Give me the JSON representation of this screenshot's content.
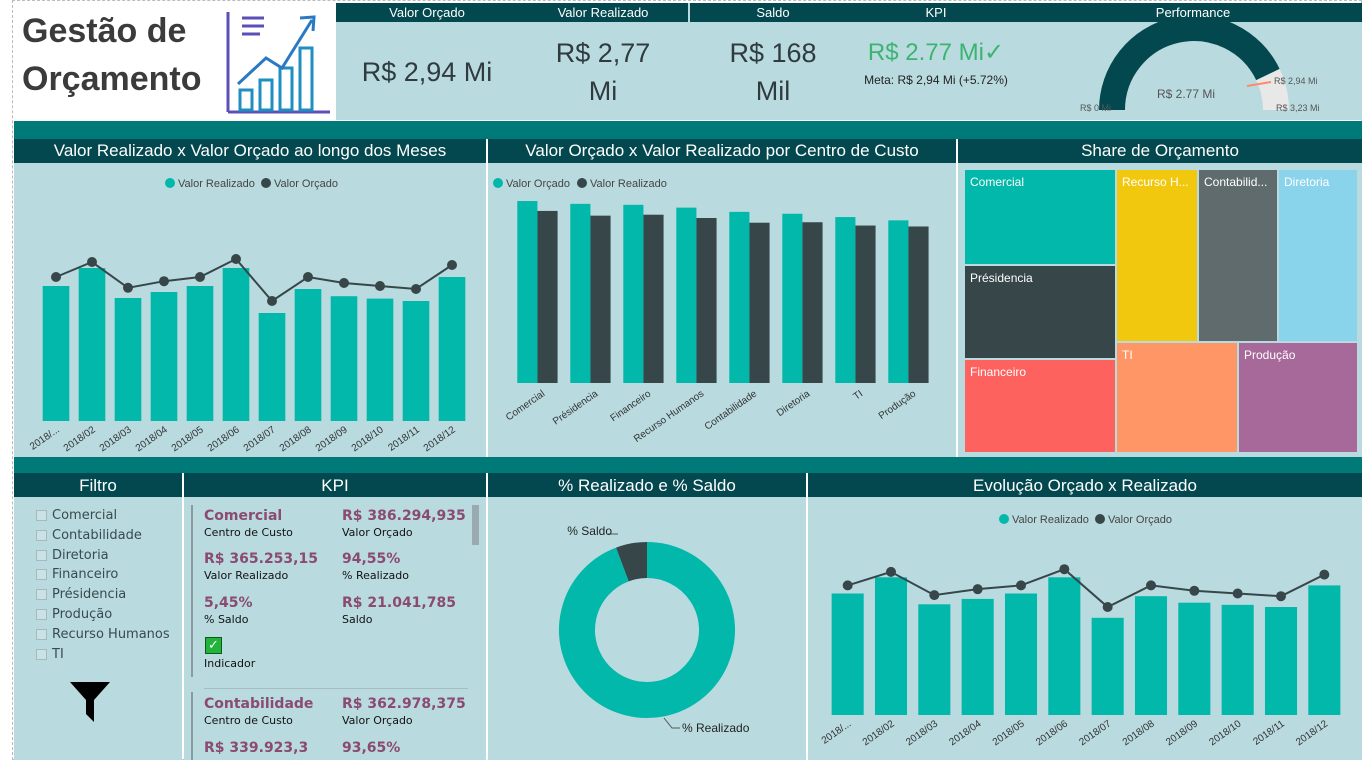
{
  "title": {
    "line1": "Gestão de",
    "line2": "Orçamento"
  },
  "cards": {
    "orcado": {
      "label": "Valor Orçado",
      "value": "R$ 2,94 Mi"
    },
    "realizado": {
      "label": "Valor Realizado",
      "value1": "R$ 2,77",
      "value2": "Mi"
    },
    "saldo": {
      "label": "Saldo",
      "value1": "R$ 168",
      "value2": "Mil"
    },
    "kpi": {
      "label": "KPI",
      "value": "R$ 2.77 Mi✓",
      "meta": "Meta: R$ 2,94 Mi (+5.72%)"
    },
    "performance": {
      "label": "Performance",
      "center": "R$ 2.77 Mi",
      "min": "R$ 0 Mi",
      "target": "R$ 2,94 Mi",
      "max": "R$ 3,23 Mi",
      "value_fraction": 0.8576
    }
  },
  "colors": {
    "teal": "#01b8aa",
    "dark": "#374649",
    "header": "#03484f",
    "panel": "#b9dbe0",
    "kpi_accent": "#8a4a72"
  },
  "chart1": {
    "title": "Valor Realizado x Valor Orçado ao longo dos Meses",
    "legend": [
      "Valor Realizado",
      "Valor Orçado"
    ]
  },
  "chart2": {
    "title": "Valor Orçado x Valor Realizado por Centro de Custo",
    "legend": [
      "Valor Orçado",
      "Valor Realizado"
    ]
  },
  "treemap": {
    "title": "Share de Orçamento"
  },
  "filtro": {
    "title": "Filtro",
    "items": [
      "Comercial",
      "Contabilidade",
      "Diretoria",
      "Financeiro",
      "Présidencia",
      "Produção",
      "Recurso Humanos",
      "TI"
    ]
  },
  "kpi_panel": {
    "title": "KPI",
    "cards": [
      {
        "name": "Comercial",
        "name_label": "Centro de Custo",
        "orcado": "R$ 386.294,935",
        "orcado_label": "Valor Orçado",
        "realizado": "R$ 365.253,15",
        "realizado_label": "Valor Realizado",
        "pct_realizado": "94,55%",
        "pct_realizado_label": "% Realizado",
        "pct_saldo": "5,45%",
        "pct_saldo_label": "% Saldo",
        "saldo": "R$ 21.041,785",
        "saldo_label": "Saldo",
        "indicator_label": "Indicador"
      },
      {
        "name": "Contabilidade",
        "name_label": "Centro de Custo",
        "orcado": "R$ 362.978,375",
        "orcado_label": "Valor Orçado",
        "realizado": "R$ 339.923,3",
        "pct_realizado": "93,65%"
      }
    ]
  },
  "donut": {
    "title": "% Realizado e % Saldo",
    "label_saldo": "% Saldo",
    "label_realizado": "% Realizado",
    "realizado_pct": 94.28,
    "saldo_pct": 5.72
  },
  "chart4": {
    "title": "Evolução Orçado x Realizado",
    "legend": [
      "Valor Realizado",
      "Valor Orçado"
    ]
  },
  "chart_data": [
    {
      "type": "bar",
      "title": "Valor Realizado x Valor Orçado ao longo dos Meses",
      "categories": [
        "2018/...",
        "2018/02",
        "2018/03",
        "2018/04",
        "2018/05",
        "2018/06",
        "2018/07",
        "2018/08",
        "2018/09",
        "2018/10",
        "2018/11",
        "2018/12"
      ],
      "series": [
        {
          "name": "Valor Realizado",
          "type": "bar",
          "values": [
            225,
            255,
            205,
            215,
            225,
            255,
            180,
            220,
            208,
            204,
            200,
            240
          ]
        },
        {
          "name": "Valor Orçado",
          "type": "line",
          "values": [
            240,
            265,
            222,
            233,
            240,
            270,
            200,
            240,
            230,
            225,
            220,
            260
          ]
        }
      ],
      "ylim": [
        0,
        300
      ]
    },
    {
      "type": "bar",
      "title": "Valor Orçado x Valor Realizado por Centro de Custo",
      "categories": [
        "Comercial",
        "Présidencia",
        "Financeiro",
        "Recurso Humanos",
        "Contabilidade",
        "Diretoria",
        "TI",
        "Produção"
      ],
      "series": [
        {
          "name": "Valor Orçado",
          "values": [
            386,
            380,
            378,
            372,
            363,
            359,
            352,
            345
          ]
        },
        {
          "name": "Valor Realizado",
          "values": [
            365,
            355,
            357,
            350,
            340,
            341,
            334,
            332
          ]
        }
      ],
      "ylim": [
        0,
        420
      ]
    },
    {
      "type": "treemap",
      "title": "Share de Orçamento",
      "items": [
        {
          "name": "Comercial",
          "value": 386,
          "color": "#01b8aa"
        },
        {
          "name": "Présidencia",
          "value": 380,
          "color": "#374649"
        },
        {
          "name": "Financeiro",
          "value": 378,
          "color": "#fd625e"
        },
        {
          "name": "Recurso H...",
          "value": 372,
          "color": "#f2c80f"
        },
        {
          "name": "TI",
          "value": 352,
          "color": "#fe9666"
        },
        {
          "name": "Contabilid...",
          "value": 363,
          "color": "#5f6b6d"
        },
        {
          "name": "Diretoria",
          "value": 359,
          "color": "#8ad4eb"
        },
        {
          "name": "Produção",
          "value": 345,
          "color": "#a66999"
        }
      ]
    },
    {
      "type": "pie",
      "title": "% Realizado e % Saldo",
      "categories": [
        "% Realizado",
        "% Saldo"
      ],
      "values": [
        94.28,
        5.72
      ]
    },
    {
      "type": "bar",
      "title": "Evolução Orçado x Realizado",
      "categories": [
        "2018/...",
        "2018/02",
        "2018/03",
        "2018/04",
        "2018/05",
        "2018/06",
        "2018/07",
        "2018/08",
        "2018/09",
        "2018/10",
        "2018/11",
        "2018/12"
      ],
      "series": [
        {
          "name": "Valor Realizado",
          "type": "bar",
          "values": [
            225,
            255,
            205,
            215,
            225,
            255,
            180,
            220,
            208,
            204,
            200,
            240
          ]
        },
        {
          "name": "Valor Orçado",
          "type": "line",
          "values": [
            240,
            265,
            222,
            233,
            240,
            270,
            200,
            240,
            230,
            225,
            220,
            260
          ]
        }
      ],
      "ylim": [
        0,
        300
      ]
    }
  ]
}
